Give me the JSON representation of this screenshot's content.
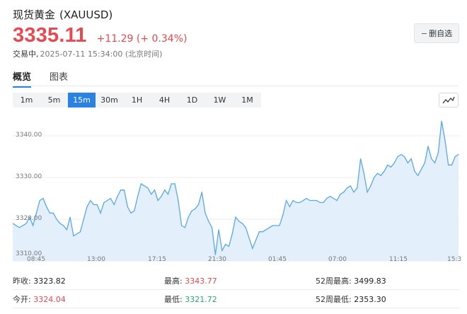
{
  "header": {
    "name": "现货黄金",
    "symbol": "(XAUUSD)",
    "price": "3335.11",
    "change": "+11.29 (+ 0.34%)",
    "status": "交易中,",
    "time": "2025-07-11 15:34:00 (北京时间)",
    "watchlist_button": "删自选"
  },
  "tabs": [
    {
      "label": "概览",
      "active": true
    },
    {
      "label": "图表",
      "active": false
    }
  ],
  "intervals": [
    {
      "label": "1m",
      "active": false
    },
    {
      "label": "5m",
      "active": false
    },
    {
      "label": "15m",
      "active": true
    },
    {
      "label": "30m",
      "active": false
    },
    {
      "label": "1H",
      "active": false
    },
    {
      "label": "4H",
      "active": false
    },
    {
      "label": "1D",
      "active": false
    },
    {
      "label": "1W",
      "active": false
    },
    {
      "label": "1M",
      "active": false
    }
  ],
  "chart_type_icon": "line-chart-icon",
  "colors": {
    "up": "#e8484f",
    "down": "#2aa76a",
    "accent": "#2a82e4",
    "line": "#5aa8e8",
    "fill": "#e3f0fc"
  },
  "chart_data": {
    "type": "area",
    "y_ticks": [
      "3340.00",
      "3330.00",
      "3320.00",
      "3310.00"
    ],
    "ylim": [
      3310,
      3344
    ],
    "x_ticks": [
      "08:45",
      "13:00",
      "17:15",
      "21:30",
      "01:45",
      "07:00",
      "11:15",
      "15:3"
    ],
    "values": [
      3319,
      3318.5,
      3318,
      3318.5,
      3319,
      3320.5,
      3318.5,
      3321.5,
      3324.5,
      3325,
      3323,
      3321.5,
      3321.5,
      3320,
      3319,
      3318.5,
      3317.5,
      3320.5,
      3316,
      3316.5,
      3317,
      3320,
      3323,
      3324.5,
      3323.5,
      3323.5,
      3321.5,
      3324,
      3324.5,
      3325,
      3323.5,
      3325.5,
      3327,
      3327,
      3323,
      3321.5,
      3322,
      3325.5,
      3328.5,
      3328,
      3327.5,
      3326,
      3327,
      3324.5,
      3325.5,
      3327,
      3326,
      3328.5,
      3328.5,
      3324.5,
      3318.5,
      3318,
      3320.5,
      3322,
      3322.5,
      3323.5,
      3326.5,
      3321.5,
      3319.5,
      3318,
      3311.5,
      3317.5,
      3312.5,
      3314,
      3313.5,
      3316.5,
      3320.5,
      3319.5,
      3319,
      3318,
      3315.5,
      3313,
      3315,
      3317,
      3317,
      3317.5,
      3318,
      3318.5,
      3318.5,
      3318.5,
      3321,
      3324.5,
      3323,
      3324.5,
      3324,
      3324,
      3324.5,
      3325,
      3324.5,
      3324.5,
      3324.5,
      3324,
      3324,
      3325,
      3325.5,
      3325,
      3324.5,
      3326,
      3326.5,
      3327.5,
      3328,
      3326.5,
      3327.5,
      3334.5,
      3331,
      3326.5,
      3328,
      3330,
      3331,
      3330.5,
      3331.5,
      3333,
      3332.5,
      3333.5,
      3335,
      3335.5,
      3335,
      3333.5,
      3334.5,
      3331.5,
      3330.5,
      3332,
      3333.5,
      3337.5,
      3334.5,
      3333.5,
      3336,
      3343.5,
      3339,
      3333,
      3333,
      3335,
      3335.5
    ]
  },
  "stats": [
    [
      {
        "label": "昨收:",
        "value": "3323.82",
        "color": "neutral"
      },
      {
        "label": "最高:",
        "value": "3343.77",
        "color": "up"
      },
      {
        "label": "52周最高:",
        "value": "3499.83",
        "color": "neutral"
      }
    ],
    [
      {
        "label": "今开:",
        "value": "3324.04",
        "color": "up"
      },
      {
        "label": "最低:",
        "value": "3321.72",
        "color": "down"
      },
      {
        "label": "52周最低:",
        "value": "2353.30",
        "color": "neutral"
      }
    ]
  ]
}
